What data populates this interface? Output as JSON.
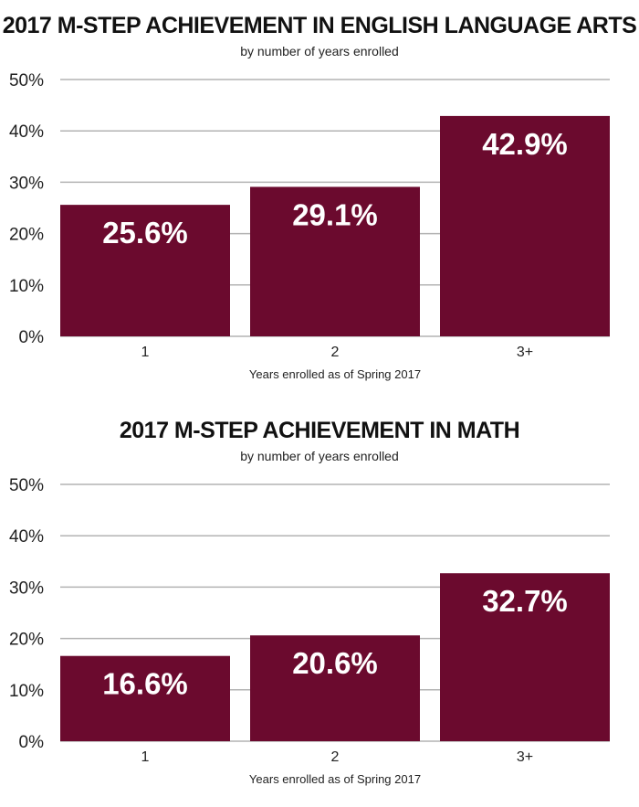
{
  "chart_data": [
    {
      "type": "bar",
      "title": "2017 M-STEP ACHIEVEMENT IN ENGLISH LANGUAGE ARTS",
      "subtitle": "by number of years enrolled",
      "xlabel": "Years enrolled as of Spring 2017",
      "ylabel": "",
      "categories": [
        "1",
        "2",
        "3+"
      ],
      "values": [
        25.6,
        29.1,
        42.9
      ],
      "data_labels": [
        "25.6%",
        "29.1%",
        "42.9%"
      ],
      "ylim": [
        0,
        50
      ],
      "yticks": [
        0,
        10,
        20,
        30,
        40,
        50
      ],
      "ytick_labels": [
        "0%",
        "10%",
        "20%",
        "30%",
        "40%",
        "50%"
      ],
      "grid": true,
      "bar_color": "#6b0a2e"
    },
    {
      "type": "bar",
      "title": "2017 M-STEP ACHIEVEMENT IN MATH",
      "subtitle": "by number of years enrolled",
      "xlabel": "Years enrolled as of Spring 2017",
      "ylabel": "",
      "categories": [
        "1",
        "2",
        "3+"
      ],
      "values": [
        16.6,
        20.6,
        32.7
      ],
      "data_labels": [
        "16.6%",
        "20.6%",
        "32.7%"
      ],
      "ylim": [
        0,
        50
      ],
      "yticks": [
        0,
        10,
        20,
        30,
        40,
        50
      ],
      "ytick_labels": [
        "0%",
        "10%",
        "20%",
        "30%",
        "40%",
        "50%"
      ],
      "grid": true,
      "bar_color": "#6b0a2e"
    }
  ],
  "colors": {
    "bar": "#6b0a2e",
    "bar_label": "#ffffff",
    "grid": "#b3b3b3",
    "text": "#111111"
  }
}
